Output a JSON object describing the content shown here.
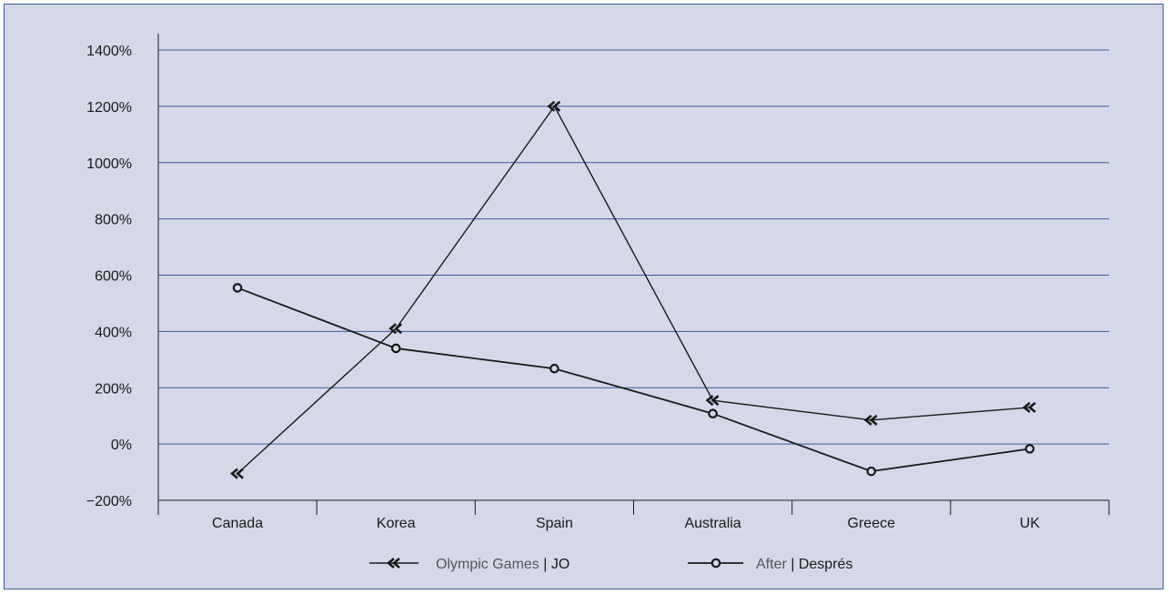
{
  "chart_data": {
    "type": "line",
    "categories": [
      "Canada",
      "Korea",
      "Spain",
      "Australia",
      "Greece",
      "UK"
    ],
    "series": [
      {
        "name": "Olympic Games | JO",
        "name_parts": [
          "Olympic Games",
          " | ",
          "JO"
        ],
        "marker": "double-chevron",
        "values": [
          -105,
          410,
          1200,
          155,
          85,
          130
        ]
      },
      {
        "name": "After | Després",
        "name_parts": [
          "After",
          " | ",
          "Després"
        ],
        "marker": "circle",
        "values": [
          555,
          340,
          268,
          108,
          -97,
          -17
        ]
      }
    ],
    "y_ticks": [
      "1400%",
      "1200%",
      "1000%",
      "800%",
      "600%",
      "400%",
      "200%",
      "0%",
      "−200%"
    ],
    "ylim": [
      -200,
      1400
    ],
    "y_tick_values": [
      1400,
      1200,
      1000,
      800,
      600,
      400,
      200,
      0,
      -200
    ],
    "grid": true,
    "legend_position": "bottom-center",
    "colors": {
      "background": "#d4d8e8",
      "gridline": "#3c5a9a",
      "series": "#1a1a1a"
    }
  }
}
